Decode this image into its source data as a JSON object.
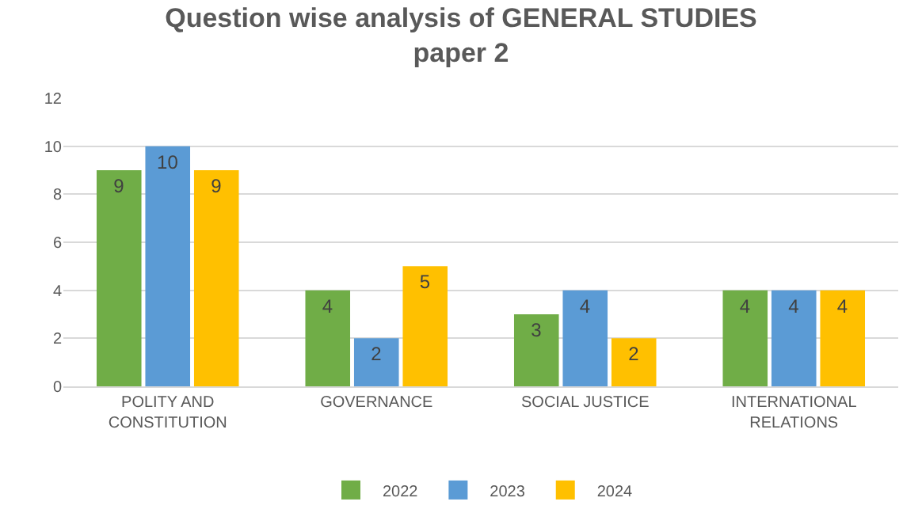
{
  "chart_data": {
    "type": "bar",
    "title": "Question wise analysis of GENERAL STUDIES paper 2",
    "categories": [
      "POLITY AND CONSTITUTION",
      "GOVERNANCE",
      "SOCIAL JUSTICE",
      "INTERNATIONAL RELATIONS"
    ],
    "series": [
      {
        "name": "2022",
        "color": "#70ad47",
        "values": [
          9,
          4,
          3,
          4
        ]
      },
      {
        "name": "2023",
        "color": "#5b9bd5",
        "values": [
          10,
          2,
          4,
          4
        ]
      },
      {
        "name": "2024",
        "color": "#ffc000",
        "values": [
          9,
          5,
          2,
          4
        ]
      }
    ],
    "ylim": [
      0,
      12
    ],
    "yticks": [
      0,
      2,
      4,
      6,
      8,
      10,
      12
    ],
    "grid": "y",
    "legend": "bottom",
    "data_labels": true
  }
}
